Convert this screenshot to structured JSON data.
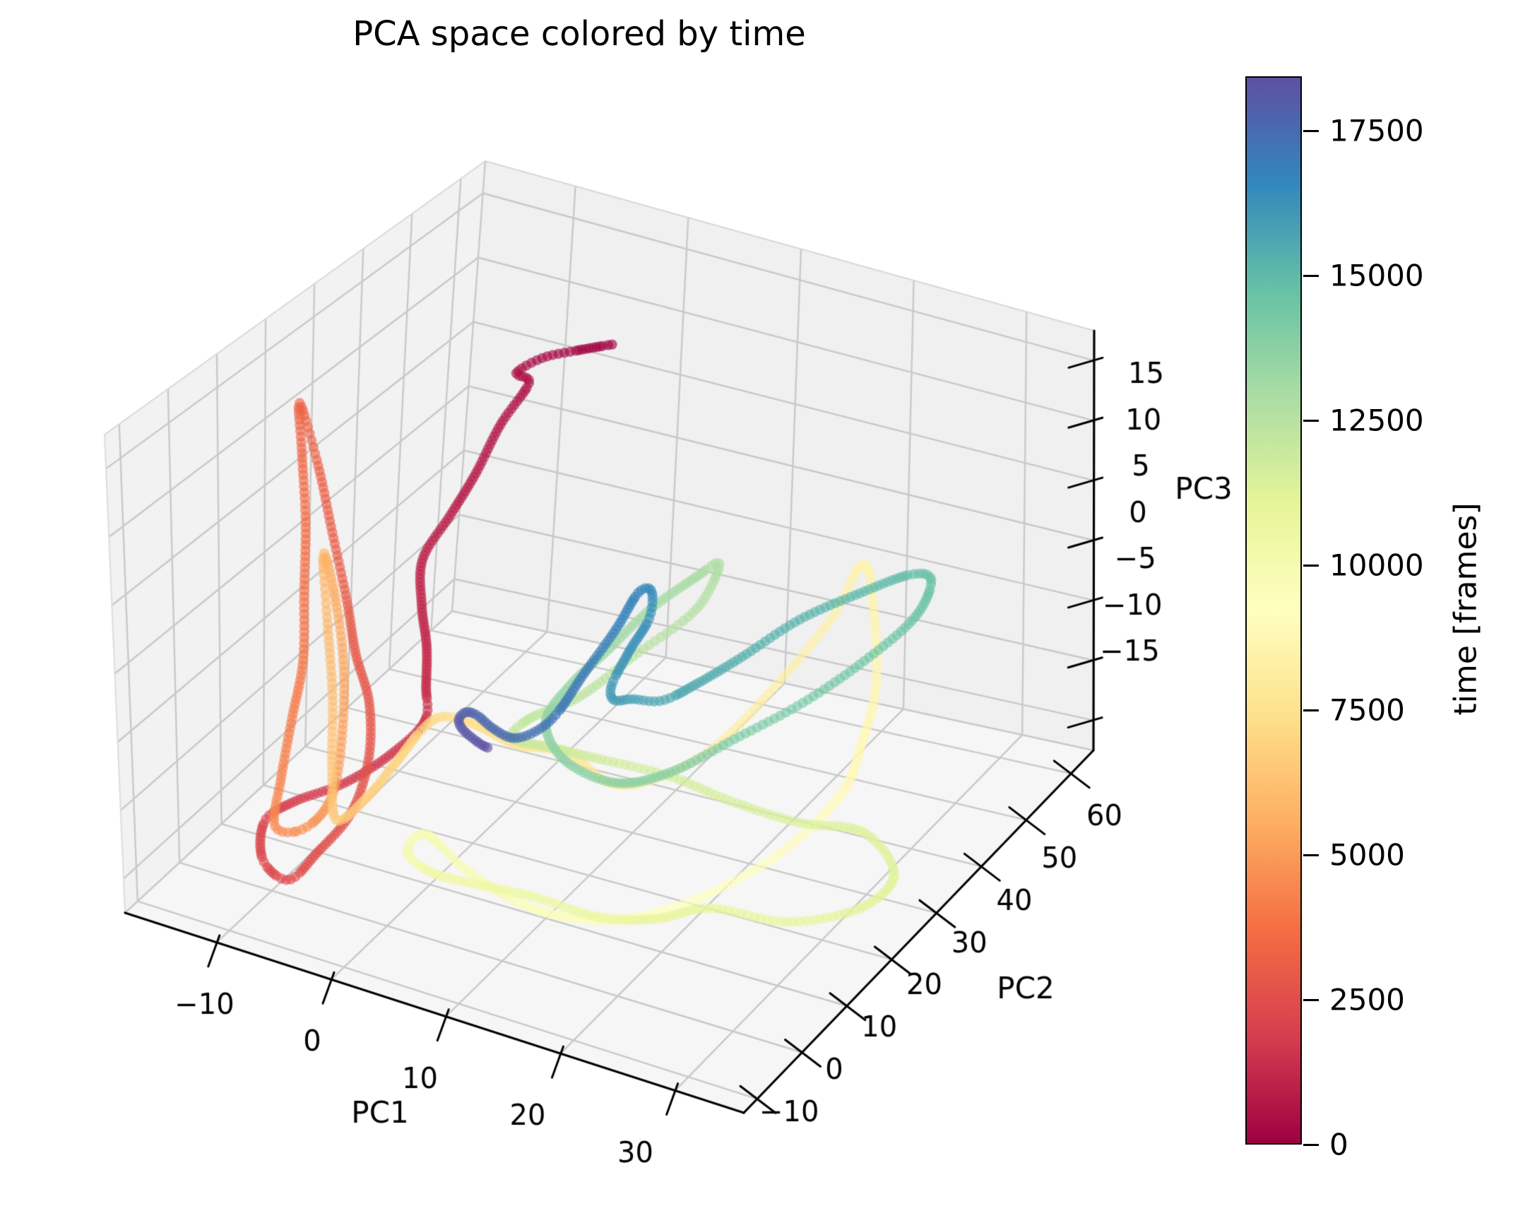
{
  "title": "PCA space colored by time",
  "axes": {
    "x": {
      "label": "PC1",
      "ticks": [
        -10,
        0,
        10,
        20,
        30
      ],
      "range": [
        -18,
        36
      ]
    },
    "y": {
      "label": "PC2",
      "ticks": [
        -10,
        0,
        10,
        20,
        30,
        40,
        50,
        60
      ],
      "range": [
        -13,
        65
      ]
    },
    "z": {
      "label": "PC3",
      "ticks": [
        -15,
        -10,
        -5,
        0,
        5,
        10,
        15
      ],
      "range": [
        -17.5,
        17.5
      ]
    }
  },
  "colorbar": {
    "label": "time [frames]",
    "ticks": [
      0,
      2500,
      5000,
      7500,
      10000,
      12500,
      15000,
      17500
    ],
    "vmin": 0,
    "vmax": 18440,
    "colormap": "Spectral",
    "anchors": [
      [
        0.0,
        "#9e0142"
      ],
      [
        0.1,
        "#d53e4f"
      ],
      [
        0.2,
        "#f46d43"
      ],
      [
        0.3,
        "#fdae61"
      ],
      [
        0.4,
        "#fee08b"
      ],
      [
        0.5,
        "#ffffbf"
      ],
      [
        0.6,
        "#e6f598"
      ],
      [
        0.7,
        "#abdda4"
      ],
      [
        0.8,
        "#66c2a5"
      ],
      [
        0.9,
        "#3288bd"
      ],
      [
        1.0,
        "#5e4fa2"
      ]
    ]
  },
  "chart_data": {
    "type": "scatter",
    "projection": "3d",
    "title": "PCA space colored by time",
    "xlabel": "PC1",
    "ylabel": "PC2",
    "zlabel": "PC3",
    "color_by": "time [frames]",
    "series": [
      {
        "name": "pca-trajectory",
        "point_format": [
          "time_frames",
          "pc1",
          "pc2",
          "pc3"
        ],
        "points": [
          [
            0,
            2,
            45,
            13
          ],
          [
            150,
            0.5,
            41,
            13.2
          ],
          [
            300,
            -1,
            37.5,
            13.2
          ],
          [
            430,
            -2,
            34.5,
            12.6
          ],
          [
            520,
            -1.5,
            36,
            11.6
          ],
          [
            640,
            -2.5,
            32.5,
            9.2
          ],
          [
            760,
            -3,
            28.5,
            6.5
          ],
          [
            880,
            -4,
            25.5,
            4
          ],
          [
            1000,
            -5,
            22,
            1.5
          ],
          [
            1100,
            -3.5,
            18,
            -0.5
          ],
          [
            1200,
            -1.5,
            14,
            -2
          ],
          [
            1300,
            0,
            10,
            -3.5
          ],
          [
            1450,
            1,
            7,
            -5
          ],
          [
            1600,
            -1,
            4,
            -7
          ],
          [
            1750,
            -3,
            -1,
            -8
          ],
          [
            1900,
            -5.5,
            -6,
            -8.5
          ],
          [
            2050,
            -6.5,
            -10,
            -9
          ],
          [
            2200,
            -6,
            -12,
            -11
          ],
          [
            2350,
            -5,
            -9,
            -13
          ],
          [
            2450,
            -4,
            -5,
            -12
          ],
          [
            2550,
            -2.5,
            -1,
            -10
          ],
          [
            2650,
            -2,
            2,
            -7
          ],
          [
            2750,
            -3,
            5,
            -4
          ],
          [
            2850,
            -4.5,
            6,
            -1
          ],
          [
            3000,
            -6,
            8,
            2
          ],
          [
            3100,
            -8,
            10,
            6
          ],
          [
            3200,
            -10,
            12,
            10
          ],
          [
            3300,
            -12,
            13,
            14
          ],
          [
            3450,
            -11,
            11,
            11
          ],
          [
            3600,
            -9.5,
            8,
            7
          ],
          [
            3750,
            -8.5,
            5,
            3
          ],
          [
            3900,
            -7.5,
            2,
            -1
          ],
          [
            4100,
            -7,
            -2,
            -4
          ],
          [
            4300,
            -6.5,
            -6,
            -7
          ],
          [
            4500,
            -6,
            -9,
            -9.5
          ],
          [
            4700,
            -5,
            -5,
            -10.5
          ],
          [
            4900,
            -4.5,
            0,
            -9.5
          ],
          [
            5100,
            -5,
            4,
            -6
          ],
          [
            5300,
            -6,
            7,
            -2
          ],
          [
            5500,
            -7.5,
            9,
            2
          ],
          [
            5700,
            -8,
            8,
            5
          ],
          [
            5900,
            -6.5,
            5,
            1
          ],
          [
            6100,
            -5,
            2,
            -3
          ],
          [
            6300,
            -4,
            -1,
            -7
          ],
          [
            6500,
            -3,
            -3,
            -10
          ],
          [
            6700,
            -1.5,
            0,
            -9
          ],
          [
            6900,
            0,
            3,
            -7
          ],
          [
            7100,
            1.5,
            5,
            -5
          ],
          [
            7250,
            3,
            6,
            -4
          ],
          [
            7400,
            6,
            6,
            -4
          ],
          [
            7550,
            9,
            7,
            -5
          ],
          [
            7700,
            13,
            8,
            -5
          ],
          [
            7850,
            17,
            7,
            -6
          ],
          [
            8000,
            21,
            7,
            -5
          ],
          [
            8120,
            25,
            10,
            -3
          ],
          [
            8240,
            28,
            15,
            0
          ],
          [
            8360,
            31,
            21,
            4
          ],
          [
            8480,
            32,
            26,
            7
          ],
          [
            8600,
            32,
            28,
            3
          ],
          [
            8700,
            32,
            28,
            -2
          ],
          [
            8800,
            31,
            27,
            -6
          ],
          [
            8900,
            30,
            25,
            -9
          ],
          [
            9050,
            27,
            20,
            -12
          ],
          [
            9200,
            23,
            14,
            -14
          ],
          [
            9350,
            19,
            9,
            -15
          ],
          [
            9500,
            15,
            5,
            -15
          ],
          [
            9650,
            11,
            2,
            -14
          ],
          [
            9800,
            7,
            0,
            -12
          ],
          [
            9950,
            4,
            -1,
            -10
          ],
          [
            10100,
            2,
            0,
            -12
          ],
          [
            10250,
            3,
            3,
            -14
          ],
          [
            10400,
            6,
            6,
            -15
          ],
          [
            10550,
            10,
            8,
            -15.5
          ],
          [
            10700,
            15,
            9,
            -16
          ],
          [
            10850,
            20,
            9,
            -15
          ],
          [
            10950,
            24,
            11,
            -14
          ],
          [
            11050,
            29,
            15,
            -15
          ],
          [
            11150,
            33,
            21,
            -15
          ],
          [
            11250,
            34,
            26,
            -14
          ],
          [
            11350,
            31,
            27,
            -12
          ],
          [
            11450,
            27,
            23,
            -11
          ],
          [
            11550,
            22,
            21,
            -10
          ],
          [
            11650,
            17,
            20,
            -9
          ],
          [
            11750,
            12,
            17,
            -8
          ],
          [
            11900,
            9,
            14,
            -7
          ],
          [
            12050,
            7,
            11,
            -6
          ],
          [
            12200,
            9,
            10,
            -4
          ],
          [
            12350,
            13,
            11,
            -2
          ],
          [
            12500,
            17,
            13,
            1
          ],
          [
            12650,
            21,
            17,
            4
          ],
          [
            12800,
            21,
            22,
            6
          ],
          [
            12950,
            18,
            24,
            4
          ],
          [
            13100,
            14,
            24,
            1
          ],
          [
            13250,
            11,
            22,
            -2
          ],
          [
            13400,
            9,
            19,
            -4
          ],
          [
            13550,
            8,
            16,
            -6
          ],
          [
            13700,
            10,
            15,
            -8
          ],
          [
            13850,
            14,
            16,
            -9
          ],
          [
            14000,
            18,
            18,
            -8
          ],
          [
            14150,
            22,
            22,
            -6
          ],
          [
            14300,
            26,
            27,
            -4
          ],
          [
            14450,
            29,
            33,
            -2
          ],
          [
            14600,
            31,
            39,
            0
          ],
          [
            14750,
            30,
            45,
            1
          ],
          [
            14900,
            27,
            48,
            0
          ],
          [
            15050,
            23,
            47,
            -2
          ],
          [
            15200,
            19,
            44,
            -4
          ],
          [
            15350,
            16,
            39,
            -6
          ],
          [
            15500,
            14,
            34,
            -7
          ],
          [
            15650,
            13,
            29,
            -7
          ],
          [
            15800,
            12,
            25,
            -6
          ],
          [
            15950,
            12,
            21,
            -5
          ],
          [
            16100,
            13,
            18,
            -3
          ],
          [
            16250,
            15,
            17,
            0
          ],
          [
            16400,
            16,
            19,
            2
          ],
          [
            16550,
            15,
            22,
            3
          ],
          [
            16700,
            13,
            24,
            2
          ],
          [
            16850,
            11,
            24,
            -1
          ],
          [
            17000,
            9,
            22,
            -4
          ],
          [
            17150,
            8,
            19,
            -6
          ],
          [
            17300,
            7,
            17,
            -7
          ],
          [
            17450,
            6,
            14,
            -7
          ],
          [
            17600,
            5,
            12,
            -6
          ],
          [
            17750,
            4,
            11,
            -5
          ],
          [
            17900,
            3,
            11,
            -5
          ],
          [
            18050,
            2,
            12,
            -6
          ],
          [
            18200,
            2,
            13,
            -7
          ],
          [
            18320,
            3,
            14,
            -8
          ],
          [
            18440,
            4,
            13.5,
            -8
          ]
        ]
      }
    ]
  }
}
